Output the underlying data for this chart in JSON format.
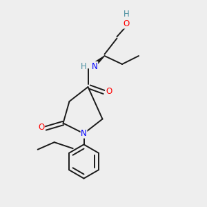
{
  "bg_color": "#eeeeee",
  "bond_color": "#1a1a1a",
  "N_color": "#0000ff",
  "O_color": "#ff0000",
  "H_color": "#4a8fa0",
  "bond_width": 1.4,
  "fig_w": 3.0,
  "fig_h": 3.0,
  "dpi": 100,
  "xlim": [
    0,
    10
  ],
  "ylim": [
    0,
    10
  ]
}
